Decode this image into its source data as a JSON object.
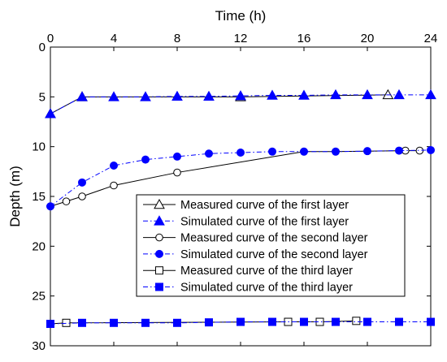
{
  "chart_data": {
    "type": "line",
    "xlabel": "Time (h)",
    "ylabel": "Depth (m)",
    "xlim": [
      0,
      24
    ],
    "ylim": [
      0,
      30
    ],
    "y_inverted": true,
    "x_ticks": [
      0,
      4,
      8,
      12,
      16,
      20,
      24
    ],
    "y_ticks": [
      0,
      5,
      10,
      15,
      20,
      25,
      30
    ],
    "x_axis_position": "top",
    "grid": false,
    "legend_position": "center-right",
    "series": [
      {
        "name": "Measured curve of the first layer",
        "marker": "triangle-open",
        "line": "solid",
        "color": "#000000",
        "x": [
          0,
          2,
          12,
          21.3
        ],
        "y": [
          6.7,
          5.0,
          5.0,
          4.8
        ]
      },
      {
        "name": "Simulated curve of the first layer",
        "marker": "triangle-filled",
        "line": "dashdot",
        "color": "#0000ff",
        "x": [
          0,
          2,
          4,
          6,
          8,
          10,
          12,
          14,
          16,
          18,
          20,
          22,
          24
        ],
        "y": [
          6.7,
          5.0,
          5.0,
          5.0,
          4.95,
          4.95,
          4.9,
          4.85,
          4.85,
          4.8,
          4.8,
          4.8,
          4.8
        ]
      },
      {
        "name": "Measured curve of the second layer",
        "marker": "circle-open",
        "line": "solid",
        "color": "#000000",
        "x": [
          0,
          1,
          2,
          4,
          8,
          16,
          18,
          22.4,
          23.3
        ],
        "y": [
          16.0,
          15.5,
          15.0,
          13.9,
          12.6,
          10.5,
          10.5,
          10.4,
          10.4
        ]
      },
      {
        "name": "Simulated curve of the second layer",
        "marker": "circle-filled",
        "line": "dashdot",
        "color": "#0000ff",
        "x": [
          0,
          2,
          4,
          6,
          8,
          10,
          12,
          14,
          16,
          18,
          20,
          22,
          24
        ],
        "y": [
          16.0,
          13.6,
          11.9,
          11.3,
          11.0,
          10.7,
          10.6,
          10.5,
          10.5,
          10.5,
          10.45,
          10.4,
          10.35
        ]
      },
      {
        "name": "Measured curve of the third layer",
        "marker": "square-open",
        "line": "solid",
        "color": "#000000",
        "x": [
          0,
          1,
          15,
          17,
          19.3
        ],
        "y": [
          27.8,
          27.7,
          27.6,
          27.6,
          27.5
        ]
      },
      {
        "name": "Simulated curve of the third layer",
        "marker": "square-filled",
        "line": "dashdot",
        "color": "#0000ff",
        "x": [
          0,
          2,
          4,
          6,
          8,
          10,
          12,
          14,
          16,
          18,
          20,
          22,
          24
        ],
        "y": [
          27.8,
          27.7,
          27.7,
          27.7,
          27.7,
          27.65,
          27.6,
          27.6,
          27.6,
          27.6,
          27.6,
          27.6,
          27.6
        ]
      }
    ]
  }
}
